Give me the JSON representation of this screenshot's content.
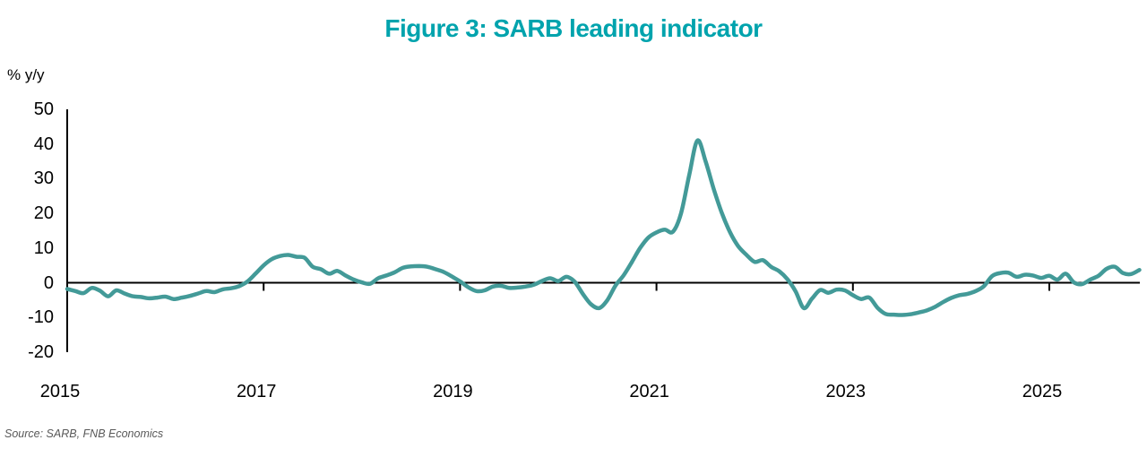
{
  "header": {
    "title": "Figure 3: SARB leading indicator",
    "title_color": "#00a3ad"
  },
  "chart_data": {
    "type": "line",
    "title": "Figure 3: SARB leading indicator",
    "unit_label": "% y/y",
    "legend_position": "none",
    "grid": false,
    "axis_color": "#000000",
    "x_axis": {
      "tick_years": [
        2015,
        2017,
        2019,
        2021,
        2023,
        2025
      ],
      "range_start": "2015-01",
      "range_end": "2025-12"
    },
    "y_axis": {
      "ticks": [
        50,
        40,
        30,
        20,
        10,
        0,
        -10,
        -20
      ],
      "min": -20,
      "max": 50
    },
    "series": [
      {
        "name": "SARB leading indicator",
        "color": "#439a98",
        "frequency": "monthly",
        "start_year": 2015,
        "start_month": 1,
        "values": [
          -1.8,
          -2.4,
          -3.0,
          -1.5,
          -2.3,
          -3.9,
          -2.2,
          -3.1,
          -3.9,
          -4.1,
          -4.5,
          -4.3,
          -4.0,
          -4.7,
          -4.3,
          -3.8,
          -3.1,
          -2.4,
          -2.7,
          -1.9,
          -1.6,
          -1.0,
          0.3,
          2.6,
          5.0,
          6.8,
          7.7,
          8.0,
          7.5,
          7.2,
          4.6,
          3.9,
          2.6,
          3.4,
          2.1,
          0.9,
          0.1,
          -0.3,
          1.3,
          2.1,
          3.0,
          4.3,
          4.7,
          4.8,
          4.6,
          3.9,
          3.1,
          1.8,
          0.4,
          -1.3,
          -2.4,
          -2.2,
          -1.1,
          -0.9,
          -1.5,
          -1.4,
          -1.1,
          -0.6,
          0.5,
          1.3,
          0.5,
          1.7,
          0.3,
          -3.2,
          -6.2,
          -7.3,
          -5.0,
          -0.8,
          2.2,
          6.0,
          10.0,
          13.0,
          14.5,
          15.3,
          14.7,
          20.0,
          31.0,
          41.0,
          35.0,
          27.0,
          20.0,
          14.5,
          10.5,
          8.0,
          6.0,
          6.5,
          4.6,
          3.3,
          1.0,
          -2.5,
          -7.3,
          -4.6,
          -2.1,
          -2.9,
          -2.0,
          -2.2,
          -3.6,
          -4.7,
          -4.3,
          -7.2,
          -9.0,
          -9.2,
          -9.3,
          -9.1,
          -8.6,
          -8.0,
          -7.0,
          -5.6,
          -4.4,
          -3.6,
          -3.2,
          -2.4,
          -1.0,
          1.9,
          2.8,
          2.9,
          1.7,
          2.3,
          2.1,
          1.4,
          2.0,
          0.9,
          2.6,
          0.1,
          -0.4,
          0.9,
          2.0,
          4.0,
          4.6,
          2.8,
          2.5,
          3.7
        ]
      }
    ]
  },
  "footer": {
    "source": "Source: SARB, FNB Economics"
  }
}
